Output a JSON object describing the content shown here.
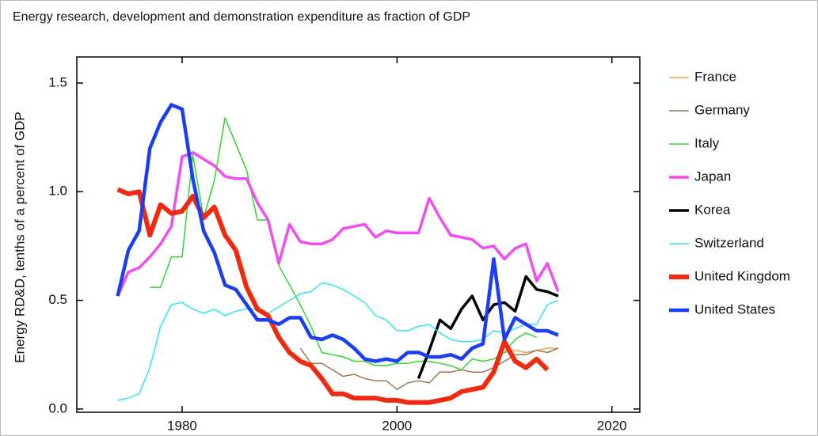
{
  "chart_data": {
    "type": "line",
    "title": "Energy research, development and demonstration expenditure as fraction of GDP",
    "y_label": "Energy RD&D, tenths of a percent of GDP",
    "x": [
      1974,
      1975,
      1976,
      1977,
      1978,
      1979,
      1980,
      1981,
      1982,
      1983,
      1984,
      1985,
      1986,
      1987,
      1988,
      1989,
      1990,
      1991,
      1992,
      1993,
      1994,
      1995,
      1996,
      1997,
      1998,
      1999,
      2000,
      2001,
      2002,
      2003,
      2004,
      2005,
      2006,
      2007,
      2008,
      2009,
      2010,
      2011,
      2012,
      2013,
      2014,
      2015
    ],
    "xlim": [
      1970.2,
      2022.6
    ],
    "xticks": [
      1980,
      2000,
      2020
    ],
    "ylim": [
      -0.015,
      1.62
    ],
    "yticks": [
      {
        "value": 0,
        "label": "0.0"
      },
      {
        "value": 0.5,
        "label": "0.5"
      },
      {
        "value": 1,
        "label": "1.0"
      },
      {
        "value": 1.5,
        "label": "1.5"
      }
    ],
    "series": [
      {
        "name": "France",
        "color": "#f5a04a",
        "width": 1.5,
        "values": [
          null,
          null,
          null,
          null,
          null,
          null,
          null,
          null,
          null,
          null,
          null,
          null,
          null,
          null,
          null,
          null,
          null,
          null,
          null,
          null,
          null,
          null,
          null,
          null,
          null,
          null,
          null,
          null,
          null,
          null,
          null,
          null,
          null,
          null,
          null,
          null,
          0.26,
          0.27,
          0.26,
          0.27,
          0.28,
          0.28
        ]
      },
      {
        "name": "Germany",
        "color": "#a0764e",
        "width": 1.5,
        "values": [
          null,
          null,
          null,
          null,
          null,
          null,
          null,
          null,
          null,
          null,
          null,
          null,
          null,
          null,
          null,
          null,
          null,
          0.28,
          0.21,
          0.21,
          0.18,
          0.15,
          0.16,
          0.14,
          0.13,
          0.13,
          0.09,
          0.12,
          0.13,
          0.12,
          0.17,
          0.17,
          0.18,
          0.17,
          0.17,
          0.19,
          0.22,
          0.25,
          0.25,
          0.27,
          0.26,
          0.28
        ]
      },
      {
        "name": "Italy",
        "color": "#2ed82e",
        "width": 1.5,
        "values": [
          null,
          null,
          null,
          0.56,
          0.56,
          0.7,
          0.7,
          1.17,
          0.88,
          1.05,
          1.34,
          1.22,
          1.1,
          0.87,
          0.87,
          0.66,
          0.57,
          0.48,
          0.38,
          0.26,
          0.25,
          0.24,
          0.22,
          0.22,
          0.2,
          0.2,
          0.21,
          0.21,
          0.22,
          0.22,
          0.21,
          0.2,
          0.18,
          0.23,
          0.22,
          0.23,
          0.26,
          0.32,
          0.35,
          0.33,
          null,
          null
        ]
      },
      {
        "name": "Japan",
        "color": "#f04cf0",
        "width": 3.5,
        "values": [
          0.52,
          0.63,
          0.65,
          0.7,
          0.76,
          0.84,
          1.16,
          1.18,
          1.15,
          1.12,
          1.07,
          1.06,
          1.06,
          0.95,
          0.87,
          0.67,
          0.85,
          0.77,
          0.76,
          0.76,
          0.78,
          0.83,
          0.84,
          0.85,
          0.79,
          0.82,
          0.81,
          0.81,
          0.81,
          0.97,
          0.88,
          0.8,
          0.79,
          0.78,
          0.74,
          0.75,
          0.69,
          0.74,
          0.76,
          0.59,
          0.67,
          0.54
        ]
      },
      {
        "name": "Korea",
        "color": "#000000",
        "width": 3.5,
        "values": [
          null,
          null,
          null,
          null,
          null,
          null,
          null,
          null,
          null,
          null,
          null,
          null,
          null,
          null,
          null,
          null,
          null,
          null,
          null,
          null,
          null,
          null,
          null,
          null,
          null,
          null,
          null,
          null,
          0.14,
          0.27,
          0.41,
          0.37,
          0.46,
          0.52,
          0.41,
          0.48,
          0.49,
          0.45,
          0.61,
          0.55,
          0.54,
          0.52
        ]
      },
      {
        "name": "Switzerland",
        "color": "#30e6f0",
        "width": 1.5,
        "values": [
          0.04,
          0.05,
          0.07,
          0.19,
          0.38,
          0.48,
          0.49,
          0.46,
          0.44,
          0.46,
          0.43,
          0.45,
          0.46,
          0.46,
          0.44,
          0.47,
          0.5,
          0.53,
          0.54,
          0.58,
          0.57,
          0.55,
          0.52,
          0.49,
          0.43,
          0.41,
          0.36,
          0.36,
          0.38,
          0.39,
          0.35,
          0.32,
          0.31,
          0.31,
          0.32,
          0.36,
          0.35,
          0.37,
          0.39,
          0.39,
          0.48,
          0.5
        ]
      },
      {
        "name": "United Kingdom",
        "color": "#f02a10",
        "width": 6,
        "values": [
          1.01,
          0.99,
          1.0,
          0.8,
          0.94,
          0.9,
          0.91,
          0.98,
          0.88,
          0.93,
          0.8,
          0.73,
          0.56,
          0.46,
          0.43,
          0.33,
          0.26,
          0.22,
          0.2,
          0.14,
          0.07,
          0.07,
          0.05,
          0.05,
          0.05,
          0.04,
          0.04,
          0.03,
          0.03,
          0.03,
          0.04,
          0.05,
          0.08,
          0.09,
          0.1,
          0.17,
          0.31,
          0.22,
          0.19,
          0.23,
          0.18,
          null
        ]
      },
      {
        "name": "United States",
        "color": "#1a3ef0",
        "width": 4.5,
        "values": [
          0.52,
          0.73,
          0.82,
          1.2,
          1.32,
          1.4,
          1.38,
          1.06,
          0.82,
          0.72,
          0.57,
          0.55,
          0.48,
          0.41,
          0.41,
          0.39,
          0.42,
          0.42,
          0.33,
          0.32,
          0.34,
          0.32,
          0.28,
          0.23,
          0.22,
          0.23,
          0.22,
          0.26,
          0.26,
          0.24,
          0.24,
          0.25,
          0.23,
          0.28,
          0.3,
          0.69,
          0.32,
          0.42,
          0.39,
          0.36,
          0.36,
          0.34
        ]
      }
    ]
  }
}
